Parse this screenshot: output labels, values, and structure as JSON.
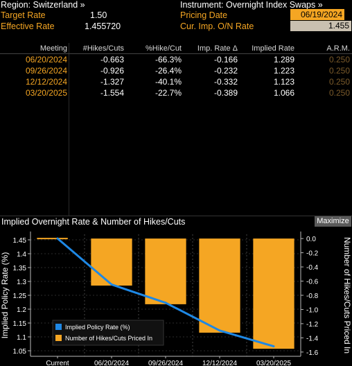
{
  "header": {
    "region_label": "Region: Switzerland »",
    "target_rate_label": "Target Rate",
    "target_rate_value": "1.50",
    "effective_rate_label": "Effective Rate",
    "effective_rate_value": "1.455720",
    "instrument_label": "Instrument: Overnight Index Swaps »",
    "pricing_date_label": "Pricing Date",
    "pricing_date_value": "06/19/2024",
    "cur_imp_label": "Cur. Imp. O/N Rate",
    "cur_imp_value": "1.455"
  },
  "table": {
    "columns": [
      "Meeting",
      "#Hikes/Cuts",
      "%Hike/Cut",
      "Imp. Rate Δ",
      "Implied Rate",
      "A.R.M."
    ],
    "rows": [
      {
        "meeting": "06/20/2024",
        "hikes": "-0.663",
        "pct": "-66.3%",
        "delta": "-0.166",
        "rate": "1.289",
        "arm": "0.250"
      },
      {
        "meeting": "09/26/2024",
        "hikes": "-0.926",
        "pct": "-26.4%",
        "delta": "-0.232",
        "rate": "1.223",
        "arm": "0.250"
      },
      {
        "meeting": "12/12/2024",
        "hikes": "-1.327",
        "pct": "-40.1%",
        "delta": "-0.332",
        "rate": "1.123",
        "arm": "0.250"
      },
      {
        "meeting": "03/20/2025",
        "hikes": "-1.554",
        "pct": "-22.7%",
        "delta": "-0.389",
        "rate": "1.066",
        "arm": "0.250"
      }
    ]
  },
  "chart": {
    "title": "Implied Overnight Rate & Number of Hikes/Cuts",
    "maximize_label": "Maximize"
  },
  "colors": {
    "accent": "#f5a623",
    "line": "#1e88e5",
    "background": "#000000"
  },
  "chart_data": {
    "type": "bar",
    "categories": [
      "Current",
      "06/20/2024",
      "09/26/2024",
      "12/12/2024",
      "03/20/2025"
    ],
    "series": [
      {
        "name": "Implied Policy Rate (%)",
        "type": "line",
        "axis": "left",
        "values": [
          1.455,
          1.289,
          1.223,
          1.123,
          1.066
        ]
      },
      {
        "name": "Number of Hikes/Cuts Priced In",
        "type": "bar",
        "axis": "right",
        "values": [
          0,
          -0.663,
          -0.926,
          -1.327,
          -1.554
        ]
      }
    ],
    "ylabel": "Implied Policy Rate (%)",
    "y2label": "Number of Hikes/Cuts Priced In",
    "ylim": [
      1.03,
      1.47
    ],
    "y2lim": [
      -1.66,
      0.06
    ],
    "yticks": [
      "1.45",
      "1.4",
      "1.35",
      "1.3",
      "1.25",
      "1.2",
      "1.15",
      "1.1",
      "1.05"
    ],
    "y2ticks": [
      "0.0",
      "-0.2",
      "-0.4",
      "-0.6",
      "-0.8",
      "-1.0",
      "-1.2",
      "-1.4",
      "-1.6"
    ],
    "legend_position": "bottom-left",
    "grid": true
  }
}
